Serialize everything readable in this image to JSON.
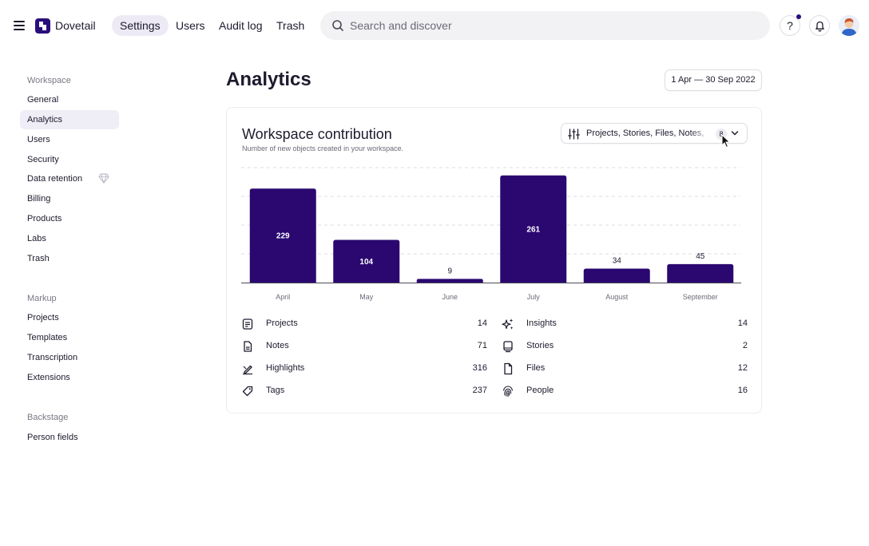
{
  "app": {
    "brand": "Dovetail"
  },
  "nav": {
    "tabs": [
      "Settings",
      "Users",
      "Audit log",
      "Trash"
    ],
    "active": "Settings"
  },
  "search": {
    "placeholder": "Search and discover"
  },
  "header": {
    "help_label": "?",
    "notification_dot": true
  },
  "sidebar": {
    "sections": [
      {
        "heading": "Workspace",
        "items": [
          "General",
          "Analytics",
          "Users",
          "Security",
          "Data retention",
          "Billing",
          "Products",
          "Labs",
          "Trash"
        ]
      },
      {
        "heading": "Markup",
        "items": [
          "Projects",
          "Templates",
          "Transcription",
          "Extensions"
        ]
      },
      {
        "heading": "Backstage",
        "items": [
          "Person fields"
        ]
      }
    ],
    "active_item": "Analytics"
  },
  "page": {
    "title": "Analytics",
    "date_range": "1 Apr — 30 Sep 2022"
  },
  "card": {
    "title": "Workspace contribution",
    "subtitle": "Number of new objects created in your workspace.",
    "filter_label": "Projects, Stories, Files, Notes,",
    "filter_count": "8"
  },
  "chart_data": {
    "type": "bar",
    "categories": [
      "April",
      "May",
      "June",
      "July",
      "August",
      "September"
    ],
    "values": [
      229,
      104,
      9,
      261,
      34,
      45
    ],
    "ylim": [
      0,
      280
    ],
    "grid": true,
    "bar_color": "#2a0870"
  },
  "stats": {
    "left": [
      {
        "icon": "projects-icon",
        "label": "Projects",
        "value": "14"
      },
      {
        "icon": "notes-icon",
        "label": "Notes",
        "value": "71"
      },
      {
        "icon": "highlights-icon",
        "label": "Highlights",
        "value": "316"
      },
      {
        "icon": "tags-icon",
        "label": "Tags",
        "value": "237"
      }
    ],
    "right": [
      {
        "icon": "insights-icon",
        "label": "Insights",
        "value": "14"
      },
      {
        "icon": "stories-icon",
        "label": "Stories",
        "value": "2"
      },
      {
        "icon": "files-icon",
        "label": "Files",
        "value": "12"
      },
      {
        "icon": "people-icon",
        "label": "People",
        "value": "16"
      }
    ]
  },
  "colors": {
    "accent": "#2a0e7a",
    "active_bg": "#efedf5"
  }
}
